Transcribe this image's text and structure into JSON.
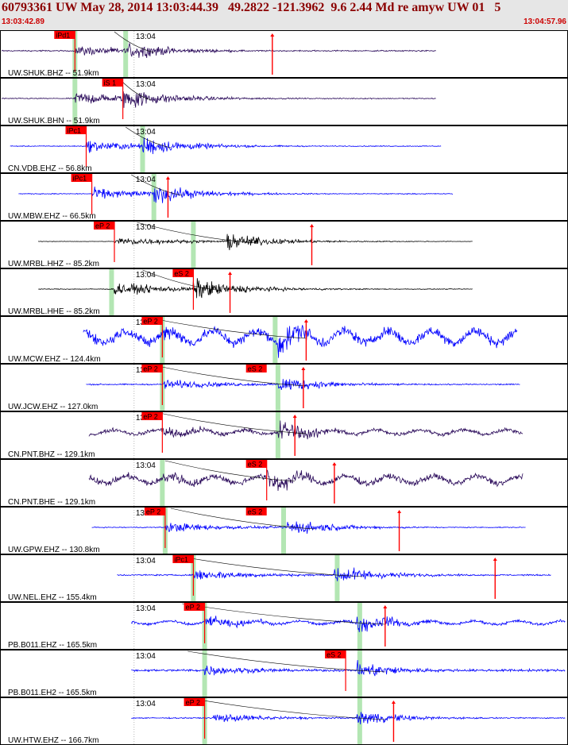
{
  "header": {
    "title": "60793361 UW May 28, 2014 13:03:44.39   49.2822 -121.3962  9.6 2.44 Md re amyw UW 01   5",
    "start_time": "13:03:42.89",
    "end_time": "13:04:57.96"
  },
  "colors": {
    "header_bg": "#e6e6e6",
    "title": "#8b0000",
    "pick_label": "#ff0000",
    "phase_band": "#b3e6b3",
    "trace_blue": "#0000ff",
    "trace_black": "#000000",
    "trace_purple": "#2a0a5a"
  },
  "chart_data": {
    "type": "line",
    "x_range": [
      "13:03:42.89",
      "13:04:57.96"
    ],
    "minute_mark": "13:04",
    "traces": [
      {
        "label": "UW.SHUK.BHZ -- 51.9km",
        "pick": "iPd1",
        "color": "purple",
        "start": 0.0,
        "end": 0.77,
        "amp": 0.5,
        "noise": 0.08,
        "p_onset": 0.13,
        "s_onset": 0.22,
        "pick_x": 0.13,
        "band_x": [
          0.13,
          0.22
        ],
        "mark_x": 0.48
      },
      {
        "label": "UW.SHUK.BHN -- 51.9km",
        "pick": "iS 1",
        "color": "purple",
        "start": 0.0,
        "end": 0.77,
        "amp": 0.65,
        "noise": 0.05,
        "p_onset": 0.13,
        "s_onset": 0.215,
        "pick_x": 0.215,
        "band_x": [
          0.13
        ]
      },
      {
        "label": "CN.VDB.EHZ -- 56.8km",
        "pick": "iPc1",
        "color": "blue",
        "start": 0.015,
        "end": 0.78,
        "amp": 0.55,
        "noise": 0.05,
        "p_onset": 0.15,
        "s_onset": 0.25,
        "pick_x": 0.15,
        "band_x": [
          0.25
        ]
      },
      {
        "label": "UW.MBW.EHZ -- 66.5km",
        "pick": "iPc1",
        "color": "blue",
        "start": 0.03,
        "end": 0.8,
        "amp": 0.55,
        "noise": 0.05,
        "p_onset": 0.16,
        "s_onset": 0.27,
        "pick_x": 0.16,
        "band_x": [
          0.27
        ],
        "mark_x": 0.295
      },
      {
        "label": "UW.MRBL.HHZ -- 85.2km",
        "pick": "eP 2",
        "color": "black",
        "start": 0.065,
        "end": 0.835,
        "amp": 0.45,
        "noise": 0.03,
        "p_onset": 0.2,
        "s_onset": 0.4,
        "pick_x": 0.2,
        "band_x": [
          0.34
        ],
        "mark_x": 0.55
      },
      {
        "label": "UW.MRBL.HHE -- 85.2km",
        "pick": "eS 2",
        "color": "black",
        "start": 0.065,
        "end": 0.835,
        "amp": 0.6,
        "noise": 0.04,
        "p_onset": 0.2,
        "s_onset": 0.34,
        "pick_x": 0.34,
        "band_x": [
          0.195
        ],
        "mark_x": 0.405
      },
      {
        "label": "UW.MCW.EHZ -- 124.4km",
        "pick": "eP 2",
        "color": "blue",
        "start": 0.145,
        "end": 0.915,
        "amp": 0.8,
        "noise": 0.4,
        "p_onset": 0.285,
        "s_onset": 0.49,
        "pick_x": 0.285,
        "band_x": [
          0.285,
          0.485
        ],
        "mark_x": 0.54
      },
      {
        "label": "UW.JCW.EHZ -- 127.0km",
        "pick": "eP 2",
        "color": "blue",
        "start": 0.15,
        "end": 0.92,
        "amp": 0.5,
        "noise": 0.08,
        "p_onset": 0.285,
        "s_onset": 0.49,
        "pick_x": 0.285,
        "band_x": [
          0.285,
          0.49
        ],
        "pick2": "eS 2",
        "pick2_x": 0.47,
        "mark_x": 0.535
      },
      {
        "label": "CN.PNT.BHZ -- 129.1km",
        "pick": "eP 2",
        "color": "purple",
        "start": 0.155,
        "end": 0.925,
        "amp": 0.6,
        "noise": 0.2,
        "p_onset": 0.285,
        "s_onset": 0.49,
        "pick_x": 0.285,
        "band_x": [
          0.49
        ],
        "mark_x": 0.52
      },
      {
        "label": "CN.PNT.BHE -- 129.1km",
        "pick": "eS 2",
        "color": "purple",
        "start": 0.155,
        "end": 0.925,
        "amp": 0.65,
        "noise": 0.3,
        "p_onset": 0.285,
        "s_onset": 0.47,
        "pick_x": 0.47,
        "band_x": [
          0.285
        ],
        "mark_x": 0.59
      },
      {
        "label": "UW.GPW.EHZ -- 130.8km",
        "pick": "eP 2",
        "color": "blue",
        "start": 0.16,
        "end": 0.93,
        "amp": 0.5,
        "noise": 0.06,
        "p_onset": 0.29,
        "s_onset": 0.505,
        "pick_x": 0.29,
        "band_x": [
          0.29,
          0.5
        ],
        "pick2": "eS 2",
        "pick2_x": 0.47,
        "mark_x": 0.705
      },
      {
        "label": "UW.NEL.EHZ -- 155.4km",
        "pick": "iPc1",
        "color": "blue",
        "start": 0.205,
        "end": 0.975,
        "amp": 0.55,
        "noise": 0.08,
        "p_onset": 0.34,
        "s_onset": 0.59,
        "pick_x": 0.34,
        "band_x": [
          0.34,
          0.595
        ],
        "mark_x": 0.875
      },
      {
        "label": "PB.B011.EHZ -- 165.5km",
        "pick": "eP 2",
        "color": "blue",
        "start": 0.23,
        "end": 1.0,
        "amp": 0.5,
        "noise": 0.18,
        "p_onset": 0.36,
        "s_onset": 0.63,
        "pick_x": 0.36,
        "band_x": [
          0.36,
          0.635
        ],
        "mark_x": 0.68
      },
      {
        "label": "PB.B011.EH2 -- 165.5km",
        "pick": "eS 2",
        "color": "blue",
        "start": 0.23,
        "end": 1.0,
        "amp": 0.5,
        "noise": 0.15,
        "p_onset": 0.36,
        "s_onset": 0.63,
        "pick_x": 0.61,
        "band_x": [
          0.36,
          0.635
        ]
      },
      {
        "label": "UW.HTW.EHZ -- 166.7km",
        "pick": "eP 2",
        "color": "blue",
        "start": 0.23,
        "end": 1.0,
        "amp": 0.45,
        "noise": 0.08,
        "p_onset": 0.375,
        "s_onset": 0.63,
        "pick_x": 0.36,
        "band_x": [
          0.36,
          0.635
        ],
        "mark_x": 0.695
      }
    ]
  }
}
